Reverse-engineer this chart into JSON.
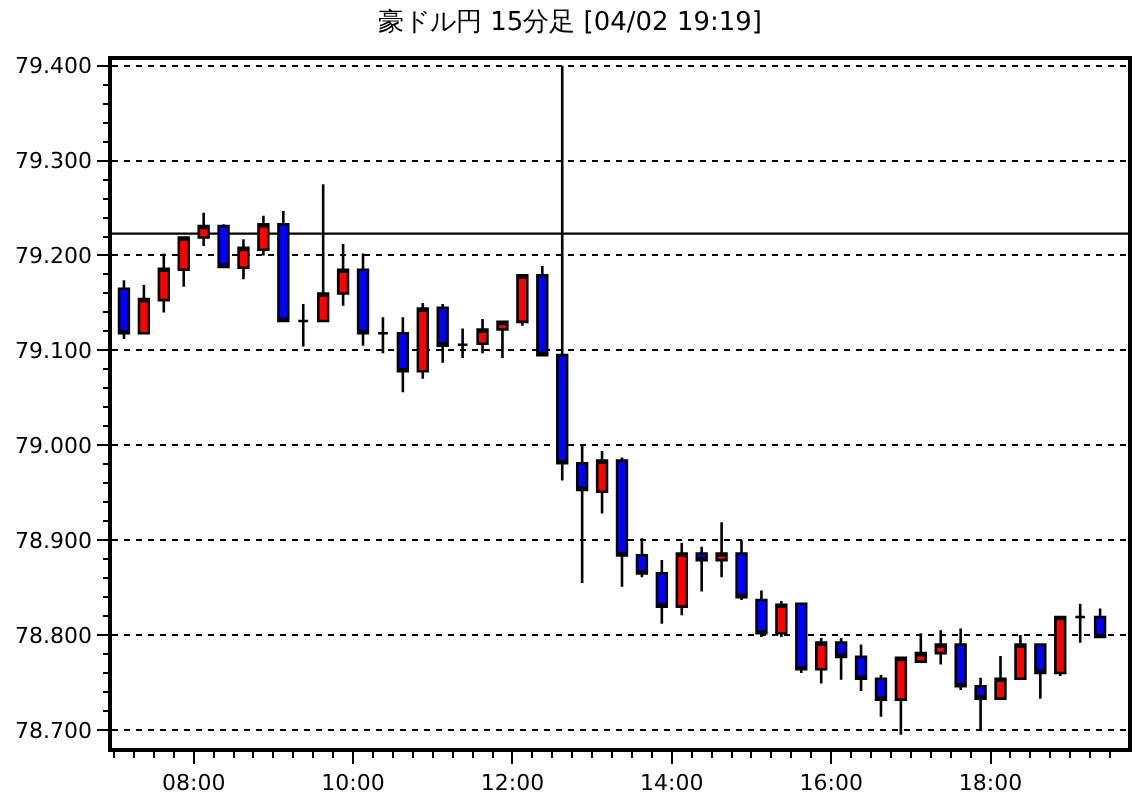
{
  "chart_data": {
    "type": "candlestick",
    "title": "豪ドル円 15分足 [04/02 19:19]",
    "x": [
      7.125,
      7.375,
      7.625,
      7.875,
      8.125,
      8.375,
      8.625,
      8.875,
      9.125,
      9.375,
      9.625,
      9.875,
      10.125,
      10.375,
      10.625,
      10.875,
      11.125,
      11.375,
      11.625,
      11.875,
      12.125,
      12.375,
      12.625,
      12.875,
      13.125,
      13.375,
      13.625,
      13.875,
      14.125,
      14.375,
      14.625,
      14.875,
      15.125,
      15.375,
      15.625,
      15.875,
      16.125,
      16.375,
      16.625,
      16.875,
      17.125,
      17.375,
      17.625,
      17.875,
      18.125,
      18.375,
      18.625,
      18.875,
      19.125,
      19.375
    ],
    "ohlc": [
      [
        79.165,
        79.174,
        79.112,
        79.118
      ],
      [
        79.118,
        79.169,
        79.118,
        79.154
      ],
      [
        79.153,
        79.202,
        79.14,
        79.186
      ],
      [
        79.185,
        79.219,
        79.167,
        79.219
      ],
      [
        79.219,
        79.245,
        79.21,
        79.231
      ],
      [
        79.231,
        79.233,
        79.188,
        79.188
      ],
      [
        79.187,
        79.217,
        79.175,
        79.208
      ],
      [
        79.206,
        79.242,
        79.2,
        79.233
      ],
      [
        79.233,
        79.247,
        79.131,
        79.131
      ],
      [
        79.131,
        79.149,
        79.104,
        79.131
      ],
      [
        79.131,
        79.275,
        79.131,
        79.16
      ],
      [
        79.16,
        79.212,
        79.147,
        79.185
      ],
      [
        79.185,
        79.202,
        79.105,
        79.118
      ],
      [
        79.118,
        79.135,
        79.097,
        79.118
      ],
      [
        79.118,
        79.135,
        79.056,
        79.078
      ],
      [
        79.078,
        79.15,
        79.07,
        79.144
      ],
      [
        79.145,
        79.149,
        79.087,
        79.105
      ],
      [
        79.106,
        79.123,
        79.092,
        79.106
      ],
      [
        79.107,
        79.133,
        79.097,
        79.122
      ],
      [
        79.122,
        79.13,
        79.092,
        79.13
      ],
      [
        79.13,
        79.179,
        79.126,
        79.179
      ],
      [
        79.179,
        79.189,
        79.095,
        79.095
      ],
      [
        79.095,
        79.4,
        78.963,
        78.981
      ],
      [
        78.981,
        79.0,
        78.855,
        78.953
      ],
      [
        78.951,
        78.994,
        78.928,
        78.984
      ],
      [
        78.984,
        78.987,
        78.851,
        78.884
      ],
      [
        78.884,
        78.902,
        78.861,
        78.865
      ],
      [
        78.865,
        78.879,
        78.812,
        78.83
      ],
      [
        78.83,
        78.897,
        78.821,
        78.886
      ],
      [
        78.886,
        78.893,
        78.846,
        78.879
      ],
      [
        78.879,
        78.919,
        78.861,
        78.886
      ],
      [
        78.886,
        78.9,
        78.837,
        78.84
      ],
      [
        78.837,
        78.847,
        78.798,
        78.802
      ],
      [
        78.802,
        78.836,
        78.798,
        78.832
      ],
      [
        78.833,
        78.833,
        78.76,
        78.764
      ],
      [
        78.764,
        78.797,
        78.749,
        78.792
      ],
      [
        78.792,
        78.797,
        78.753,
        78.777
      ],
      [
        78.777,
        78.79,
        78.741,
        78.754
      ],
      [
        78.754,
        78.758,
        78.714,
        78.732
      ],
      [
        78.732,
        78.776,
        78.695,
        78.776
      ],
      [
        78.772,
        78.802,
        78.772,
        78.781
      ],
      [
        78.781,
        78.805,
        78.769,
        78.79
      ],
      [
        78.79,
        78.807,
        78.742,
        78.746
      ],
      [
        78.746,
        78.755,
        78.7,
        78.733
      ],
      [
        78.733,
        78.778,
        78.733,
        78.754
      ],
      [
        78.754,
        78.8,
        78.754,
        78.79
      ],
      [
        78.79,
        78.79,
        78.733,
        78.76
      ],
      [
        78.76,
        78.819,
        78.757,
        78.819
      ],
      [
        78.819,
        78.833,
        78.792,
        78.819
      ],
      [
        78.819,
        78.828,
        78.797,
        78.798
      ]
    ],
    "colors": [
      "#0000ff",
      "#ff0000",
      "#ff0000",
      "#ff0000",
      "#ff0000",
      "#0000ff",
      "#ff0000",
      "#ff0000",
      "#0000ff",
      "#000000",
      "#ff0000",
      "#ff0000",
      "#0000ff",
      "#000000",
      "#0000ff",
      "#ff0000",
      "#0000ff",
      "#000000",
      "#ff0000",
      "#ff0000",
      "#ff0000",
      "#0000ff",
      "#0000ff",
      "#0000ff",
      "#ff0000",
      "#0000ff",
      "#0000ff",
      "#0000ff",
      "#ff0000",
      "#0000ff",
      "#ff0000",
      "#0000ff",
      "#0000ff",
      "#ff0000",
      "#0000ff",
      "#ff0000",
      "#0000ff",
      "#0000ff",
      "#0000ff",
      "#ff0000",
      "#ff0000",
      "#ff0000",
      "#0000ff",
      "#0000ff",
      "#ff0000",
      "#ff0000",
      "#0000ff",
      "#ff0000",
      "#000000",
      "#0000ff"
    ],
    "xlim": [
      6.975,
      19.725
    ],
    "xticks": [
      {
        "value": 8,
        "label": "08:00"
      },
      {
        "value": 10,
        "label": "10:00"
      },
      {
        "value": 12,
        "label": "12:00"
      },
      {
        "value": 14,
        "label": "14:00"
      },
      {
        "value": 16,
        "label": "16:00"
      },
      {
        "value": 18,
        "label": "18:00"
      }
    ],
    "ylim": [
      78.681,
      79.406
    ],
    "yticks": [
      {
        "value": 78.7,
        "label": "78.700"
      },
      {
        "value": 78.8,
        "label": "78.800"
      },
      {
        "value": 78.9,
        "label": "78.900"
      },
      {
        "value": 79.0,
        "label": "79.000"
      },
      {
        "value": 79.1,
        "label": "79.100"
      },
      {
        "value": 79.2,
        "label": "79.200"
      },
      {
        "value": 79.3,
        "label": "79.300"
      },
      {
        "value": 79.4,
        "label": "79.400"
      }
    ],
    "ref_lines": [
      {
        "axis": "y",
        "value": 79.223,
        "color": "#000000",
        "line_style": "solid"
      }
    ],
    "grid": "y"
  }
}
